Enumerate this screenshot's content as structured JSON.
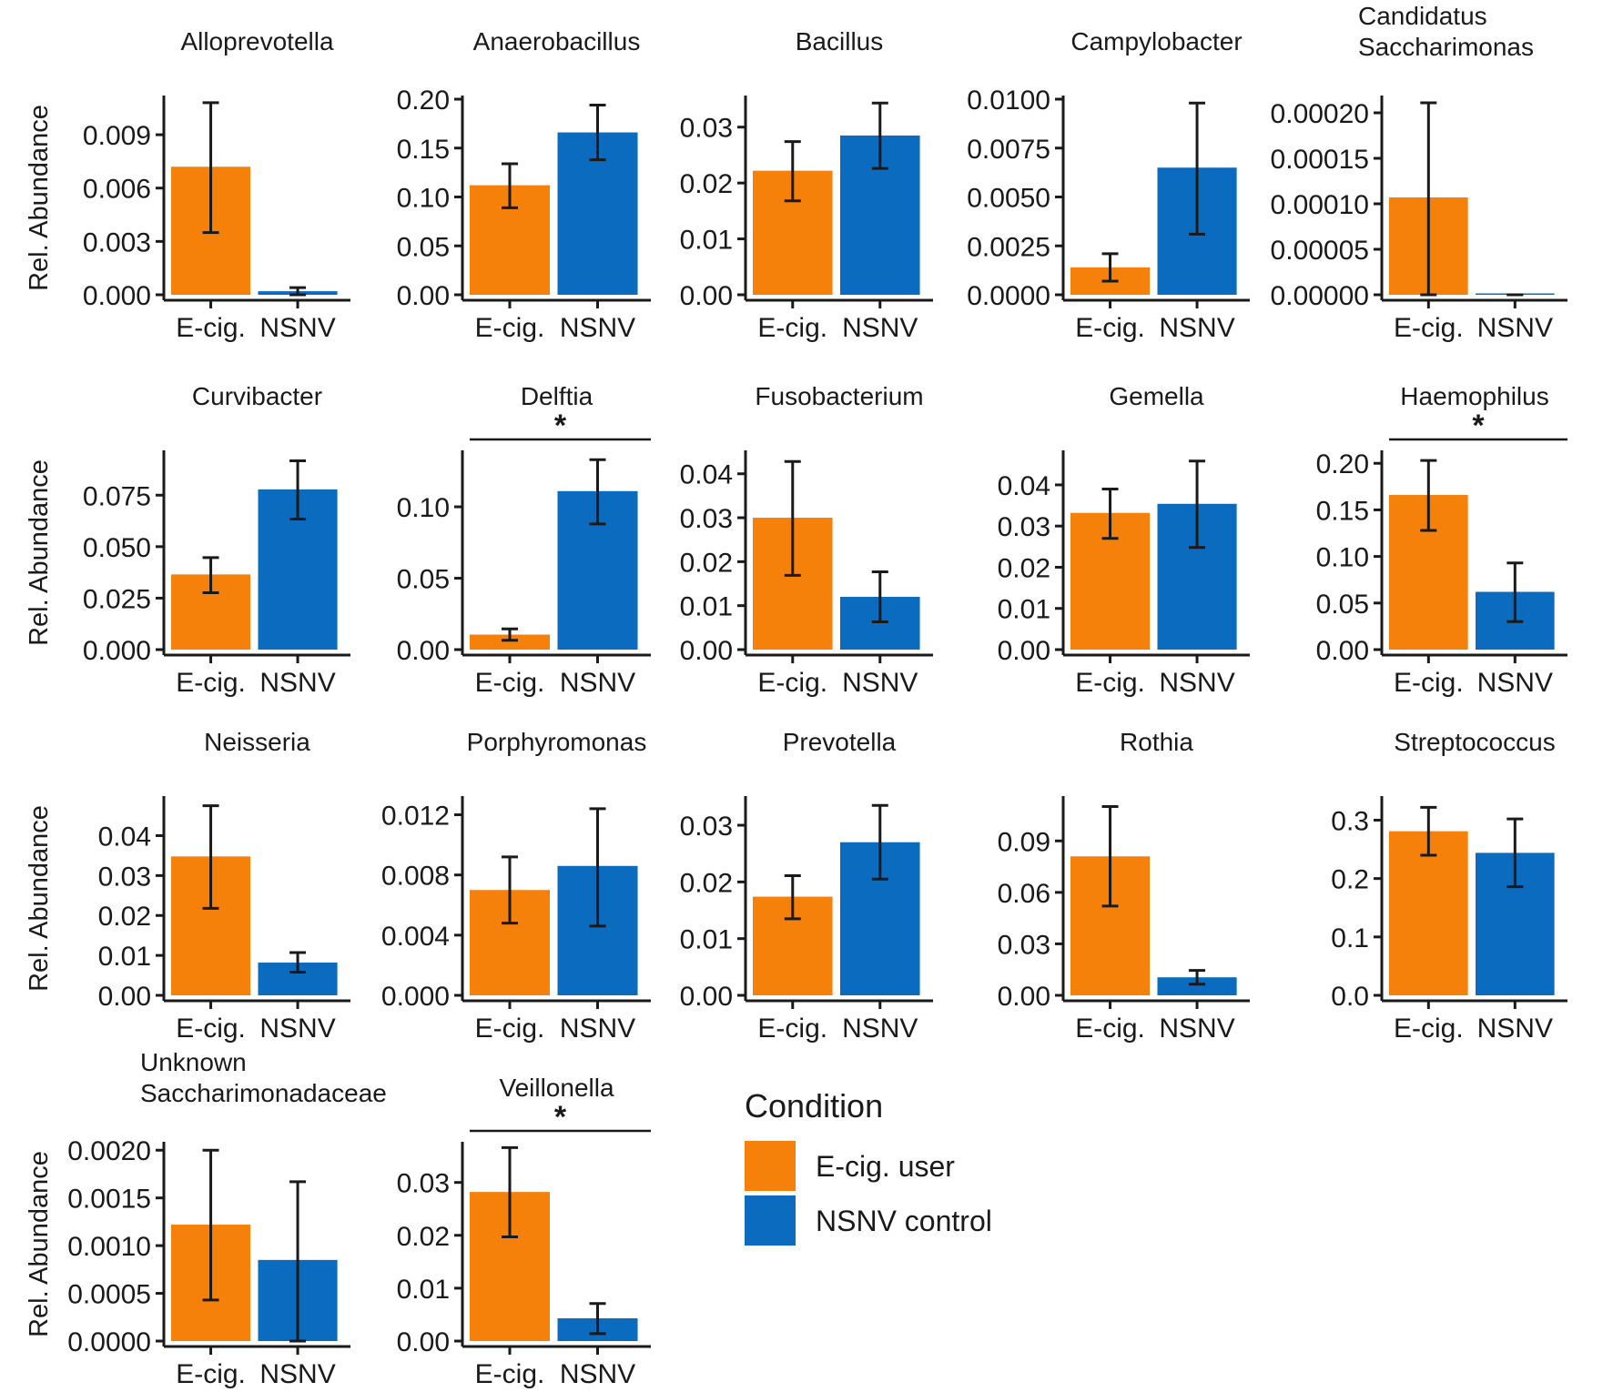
{
  "colors": {
    "ecig": "#F5800A",
    "nsnv": "#0A6BBF",
    "axis": "#1a1a1a"
  },
  "legend": {
    "title": "Condition",
    "items": [
      {
        "label": "E-cig. user",
        "color": "#F5800A"
      },
      {
        "label": "NSNV control",
        "color": "#0A6BBF"
      }
    ]
  },
  "chart_data": [
    {
      "type": "bar",
      "title": [
        "Alloprevotella"
      ],
      "ylabel": "Rel. Abundance",
      "categories": [
        "E-cig.",
        "NSNV"
      ],
      "values": [
        0.0072,
        0.0002
      ],
      "errors": [
        [
          0.0035,
          0.0108
        ],
        [
          0.0,
          0.0004
        ]
      ],
      "ylim": [
        0,
        0.011
      ],
      "yticks": [
        0.0,
        0.003,
        0.006,
        0.009
      ],
      "ytick_labels": [
        "0.000",
        "0.003",
        "0.006",
        "0.009"
      ],
      "significant": false
    },
    {
      "type": "bar",
      "title": [
        "Anaerobacillus"
      ],
      "ylabel": "",
      "categories": [
        "E-cig.",
        "NSNV"
      ],
      "values": [
        0.112,
        0.166
      ],
      "errors": [
        [
          0.089,
          0.134
        ],
        [
          0.138,
          0.194
        ]
      ],
      "ylim": [
        0,
        0.2
      ],
      "yticks": [
        0.0,
        0.05,
        0.1,
        0.15,
        0.2
      ],
      "ytick_labels": [
        "0.00",
        "0.05",
        "0.10",
        "0.15",
        "0.20"
      ],
      "significant": false
    },
    {
      "type": "bar",
      "title": [
        "Bacillus"
      ],
      "ylabel": "",
      "categories": [
        "E-cig.",
        "NSNV"
      ],
      "values": [
        0.0222,
        0.0285
      ],
      "errors": [
        [
          0.0168,
          0.0274
        ],
        [
          0.0226,
          0.0343
        ]
      ],
      "ylim": [
        0,
        0.035
      ],
      "yticks": [
        0.0,
        0.01,
        0.02,
        0.03
      ],
      "ytick_labels": [
        "0.00",
        "0.01",
        "0.02",
        "0.03"
      ],
      "significant": false
    },
    {
      "type": "bar",
      "title": [
        "Campylobacter"
      ],
      "ylabel": "",
      "categories": [
        "E-cig.",
        "NSNV"
      ],
      "values": [
        0.0014,
        0.0065
      ],
      "errors": [
        [
          0.0007,
          0.0021
        ],
        [
          0.0031,
          0.0098
        ]
      ],
      "ylim": [
        0,
        0.01
      ],
      "yticks": [
        0.0,
        0.0025,
        0.005,
        0.0075,
        0.01
      ],
      "ytick_labels": [
        "0.0000",
        "0.0025",
        "0.0050",
        "0.0075",
        "0.0100"
      ],
      "significant": false
    },
    {
      "type": "bar",
      "title": [
        "Candidatus",
        "Saccharimonas"
      ],
      "ylabel": "",
      "categories": [
        "E-cig.",
        "NSNV"
      ],
      "values": [
        0.000107,
        0.0
      ],
      "errors": [
        [
          0.0,
          0.000211
        ],
        [
          0.0,
          0.0
        ]
      ],
      "ylim": [
        0,
        0.000215
      ],
      "yticks": [
        0.0,
        5e-05,
        0.0001,
        0.00015,
        0.0002
      ],
      "ytick_labels": [
        "0.00000",
        "0.00005",
        "0.00010",
        "0.00015",
        "0.00020"
      ],
      "significant": false
    },
    {
      "type": "bar",
      "title": [
        "Curvibacter"
      ],
      "ylabel": "Rel. Abundance",
      "categories": [
        "E-cig.",
        "NSNV"
      ],
      "values": [
        0.0365,
        0.0778
      ],
      "errors": [
        [
          0.0276,
          0.0447
        ],
        [
          0.0634,
          0.0917
        ]
      ],
      "ylim": [
        0,
        0.095
      ],
      "yticks": [
        0.0,
        0.025,
        0.05,
        0.075
      ],
      "ytick_labels": [
        "0.000",
        "0.025",
        "0.050",
        "0.075"
      ],
      "significant": false
    },
    {
      "type": "bar",
      "title": [
        "Delftia"
      ],
      "ylabel": "",
      "categories": [
        "E-cig.",
        "NSNV"
      ],
      "values": [
        0.0105,
        0.111
      ],
      "errors": [
        [
          0.0065,
          0.0145
        ],
        [
          0.088,
          0.133
        ]
      ],
      "ylim": [
        0,
        0.137
      ],
      "yticks": [
        0.0,
        0.05,
        0.1
      ],
      "ytick_labels": [
        "0.00",
        "0.05",
        "0.10"
      ],
      "significant": true,
      "sig_label": "*"
    },
    {
      "type": "bar",
      "title": [
        "Fusobacterium"
      ],
      "ylabel": "",
      "categories": [
        "E-cig.",
        "NSNV"
      ],
      "values": [
        0.03,
        0.012
      ],
      "errors": [
        [
          0.0169,
          0.0428
        ],
        [
          0.0063,
          0.0177
        ]
      ],
      "ylim": [
        0,
        0.0445
      ],
      "yticks": [
        0.0,
        0.01,
        0.02,
        0.03,
        0.04
      ],
      "ytick_labels": [
        "0.00",
        "0.01",
        "0.02",
        "0.03",
        "0.04"
      ],
      "significant": false
    },
    {
      "type": "bar",
      "title": [
        "Gemella"
      ],
      "ylabel": "",
      "categories": [
        "E-cig.",
        "NSNV"
      ],
      "values": [
        0.0332,
        0.0354
      ],
      "errors": [
        [
          0.027,
          0.039
        ],
        [
          0.0248,
          0.0458
        ]
      ],
      "ylim": [
        0,
        0.0475
      ],
      "yticks": [
        0.0,
        0.01,
        0.02,
        0.03,
        0.04
      ],
      "ytick_labels": [
        "0.00",
        "0.01",
        "0.02",
        "0.03",
        "0.04"
      ],
      "significant": false
    },
    {
      "type": "bar",
      "title": [
        "Haemophilus"
      ],
      "ylabel": "",
      "categories": [
        "E-cig.",
        "NSNV"
      ],
      "values": [
        0.166,
        0.062
      ],
      "errors": [
        [
          0.128,
          0.203
        ],
        [
          0.03,
          0.093
        ]
      ],
      "ylim": [
        0,
        0.21
      ],
      "yticks": [
        0.0,
        0.05,
        0.1,
        0.15,
        0.2
      ],
      "ytick_labels": [
        "0.00",
        "0.05",
        "0.10",
        "0.15",
        "0.20"
      ],
      "significant": true,
      "sig_label": "*"
    },
    {
      "type": "bar",
      "title": [
        "Neisseria"
      ],
      "ylabel": "Rel. Abundance",
      "categories": [
        "E-cig.",
        "NSNV"
      ],
      "values": [
        0.0348,
        0.0082
      ],
      "errors": [
        [
          0.0218,
          0.0475
        ],
        [
          0.0058,
          0.0107
        ]
      ],
      "ylim": [
        0,
        0.049
      ],
      "yticks": [
        0.0,
        0.01,
        0.02,
        0.03,
        0.04
      ],
      "ytick_labels": [
        "0.00",
        "0.01",
        "0.02",
        "0.03",
        "0.04"
      ],
      "significant": false
    },
    {
      "type": "bar",
      "title": [
        "Porphyromonas"
      ],
      "ylabel": "",
      "categories": [
        "E-cig.",
        "NSNV"
      ],
      "values": [
        0.007,
        0.0086
      ],
      "errors": [
        [
          0.0048,
          0.0092
        ],
        [
          0.0046,
          0.0124
        ]
      ],
      "ylim": [
        0,
        0.013
      ],
      "yticks": [
        0.0,
        0.004,
        0.008,
        0.012
      ],
      "ytick_labels": [
        "0.000",
        "0.004",
        "0.008",
        "0.012"
      ],
      "significant": false
    },
    {
      "type": "bar",
      "title": [
        "Prevotella"
      ],
      "ylabel": "",
      "categories": [
        "E-cig.",
        "NSNV"
      ],
      "values": [
        0.0174,
        0.027
      ],
      "errors": [
        [
          0.0135,
          0.0211
        ],
        [
          0.0205,
          0.0335
        ]
      ],
      "ylim": [
        0,
        0.0345
      ],
      "yticks": [
        0.0,
        0.01,
        0.02,
        0.03
      ],
      "ytick_labels": [
        "0.00",
        "0.01",
        "0.02",
        "0.03"
      ],
      "significant": false
    },
    {
      "type": "bar",
      "title": [
        "Rothia"
      ],
      "ylabel": "",
      "categories": [
        "E-cig.",
        "NSNV"
      ],
      "values": [
        0.081,
        0.0105
      ],
      "errors": [
        [
          0.052,
          0.11
        ],
        [
          0.0065,
          0.0145
        ]
      ],
      "ylim": [
        0,
        0.114
      ],
      "yticks": [
        0.0,
        0.03,
        0.06,
        0.09
      ],
      "ytick_labels": [
        "0.00",
        "0.03",
        "0.06",
        "0.09"
      ],
      "significant": false
    },
    {
      "type": "bar",
      "title": [
        "Streptococcus"
      ],
      "ylabel": "",
      "categories": [
        "E-cig.",
        "NSNV"
      ],
      "values": [
        0.281,
        0.244
      ],
      "errors": [
        [
          0.24,
          0.322
        ],
        [
          0.186,
          0.302
        ]
      ],
      "ylim": [
        0,
        0.335
      ],
      "yticks": [
        0.0,
        0.1,
        0.2,
        0.3
      ],
      "ytick_labels": [
        "0.0",
        "0.1",
        "0.2",
        "0.3"
      ],
      "significant": false
    },
    {
      "type": "bar",
      "title": [
        "Unknown",
        "Saccharimonadaceae"
      ],
      "ylabel": "Rel. Abundance",
      "categories": [
        "E-cig.",
        "NSNV"
      ],
      "values": [
        0.00122,
        0.00085
      ],
      "errors": [
        [
          0.00043,
          0.002
        ],
        [
          0.0,
          0.00167
        ]
      ],
      "ylim": [
        0,
        0.00205
      ],
      "yticks": [
        0.0,
        0.0005,
        0.001,
        0.0015,
        0.002
      ],
      "ytick_labels": [
        "0.0000",
        "0.0005",
        "0.0010",
        "0.0015",
        "0.0020"
      ],
      "significant": false
    },
    {
      "type": "bar",
      "title": [
        "Veillonella"
      ],
      "ylabel": "",
      "categories": [
        "E-cig.",
        "NSNV"
      ],
      "values": [
        0.0282,
        0.0043
      ],
      "errors": [
        [
          0.0197,
          0.0366
        ],
        [
          0.0014,
          0.0071
        ]
      ],
      "ylim": [
        0,
        0.037
      ],
      "yticks": [
        0.0,
        0.01,
        0.02,
        0.03
      ],
      "ytick_labels": [
        "0.00",
        "0.01",
        "0.02",
        "0.03"
      ],
      "significant": true,
      "sig_label": "*"
    }
  ]
}
